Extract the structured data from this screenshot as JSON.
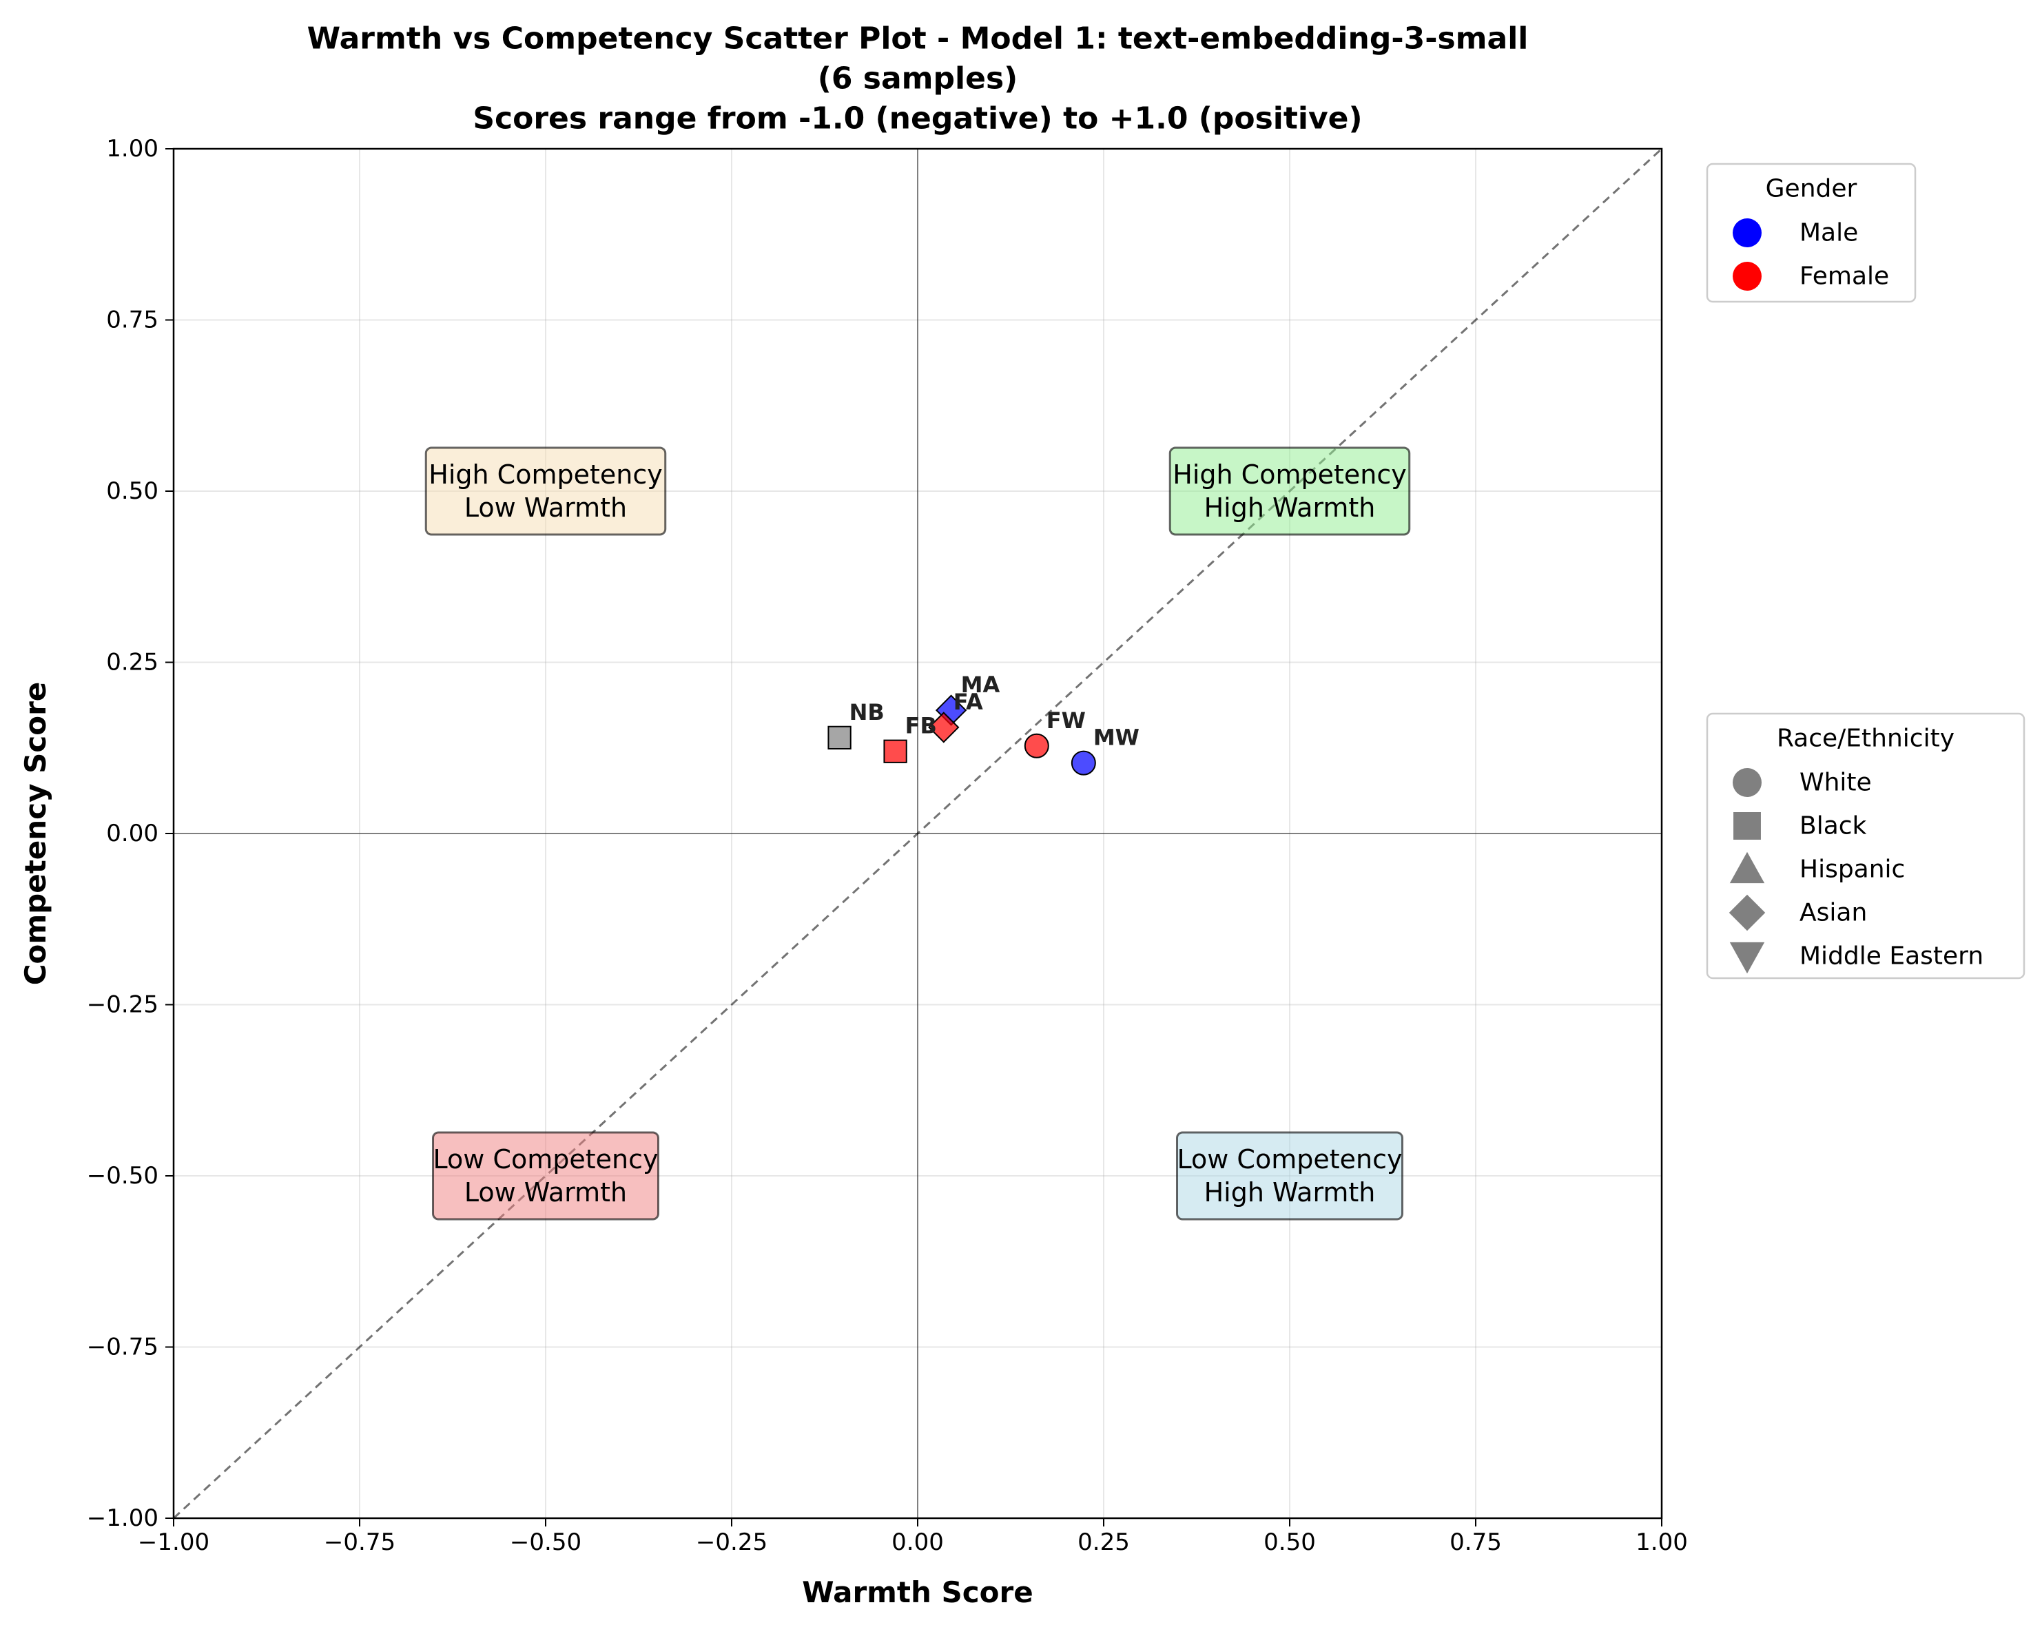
{
  "chart_data": {
    "type": "scatter",
    "title_lines": [
      "Warmth vs Competency Scatter Plot - Model 1: text-embedding-3-small",
      "(6 samples)",
      "Scores range from -1.0 (negative) to +1.0 (positive)"
    ],
    "xlabel": "Warmth Score",
    "ylabel": "Competency Score",
    "xlim": [
      -1.0,
      1.0
    ],
    "ylim": [
      -1.0,
      1.0
    ],
    "xticks": [
      -1.0,
      -0.75,
      -0.5,
      -0.25,
      0.0,
      0.25,
      0.5,
      0.75,
      1.0
    ],
    "yticks": [
      -1.0,
      -0.75,
      -0.5,
      -0.25,
      0.0,
      0.25,
      0.5,
      0.75,
      1.0
    ],
    "xtick_labels": [
      "−1.00",
      "−0.75",
      "−0.50",
      "−0.25",
      "0.00",
      "0.25",
      "0.50",
      "0.75",
      "1.00"
    ],
    "ytick_labels": [
      "−1.00",
      "−0.75",
      "−0.50",
      "−0.25",
      "0.00",
      "0.25",
      "0.50",
      "0.75",
      "1.00"
    ],
    "grid": true,
    "diagonal_reference": true,
    "points": [
      {
        "label": "MA",
        "x": 0.045,
        "y": 0.18,
        "gender": "Male",
        "race": "Asian",
        "shape": "diamond",
        "color": "#0000ff"
      },
      {
        "label": "FA",
        "x": 0.035,
        "y": 0.155,
        "gender": "Female",
        "race": "Asian",
        "shape": "diamond",
        "color": "#ff0000"
      },
      {
        "label": "NB",
        "x": -0.105,
        "y": 0.14,
        "gender": "",
        "race": "Black",
        "shape": "square",
        "color": "#808080"
      },
      {
        "label": "FB",
        "x": -0.03,
        "y": 0.12,
        "gender": "Female",
        "race": "Black",
        "shape": "square",
        "color": "#ff0000"
      },
      {
        "label": "FW",
        "x": 0.16,
        "y": 0.128,
        "gender": "Female",
        "race": "White",
        "shape": "circle",
        "color": "#ff0000"
      },
      {
        "label": "MW",
        "x": 0.223,
        "y": 0.103,
        "gender": "Male",
        "race": "White",
        "shape": "circle",
        "color": "#0000ff"
      }
    ],
    "quadrant_labels": [
      {
        "lines": [
          "High Competency",
          "Low Warmth"
        ],
        "x": -0.5,
        "y": 0.5,
        "fill": "#f5deb3"
      },
      {
        "lines": [
          "High Competency",
          "High Warmth"
        ],
        "x": 0.5,
        "y": 0.5,
        "fill": "#90ee90"
      },
      {
        "lines": [
          "Low Competency",
          "Low Warmth"
        ],
        "x": -0.5,
        "y": -0.5,
        "fill": "#f08080"
      },
      {
        "lines": [
          "Low Competency",
          "High Warmth"
        ],
        "x": 0.5,
        "y": -0.5,
        "fill": "#add8e6"
      }
    ],
    "legends": [
      {
        "title": "Gender",
        "placement": "upper-right-outside",
        "entries": [
          {
            "label": "Male",
            "shape": "circle",
            "color": "#0000ff"
          },
          {
            "label": "Female",
            "shape": "circle",
            "color": "#ff0000"
          }
        ]
      },
      {
        "title": "Race/Ethnicity",
        "placement": "center-right-outside",
        "entries": [
          {
            "label": "White",
            "shape": "circle",
            "color": "#808080"
          },
          {
            "label": "Black",
            "shape": "square",
            "color": "#808080"
          },
          {
            "label": "Hispanic",
            "shape": "triangle-up",
            "color": "#808080"
          },
          {
            "label": "Asian",
            "shape": "diamond",
            "color": "#808080"
          },
          {
            "label": "Middle Eastern",
            "shape": "triangle-down",
            "color": "#808080"
          }
        ]
      }
    ]
  }
}
